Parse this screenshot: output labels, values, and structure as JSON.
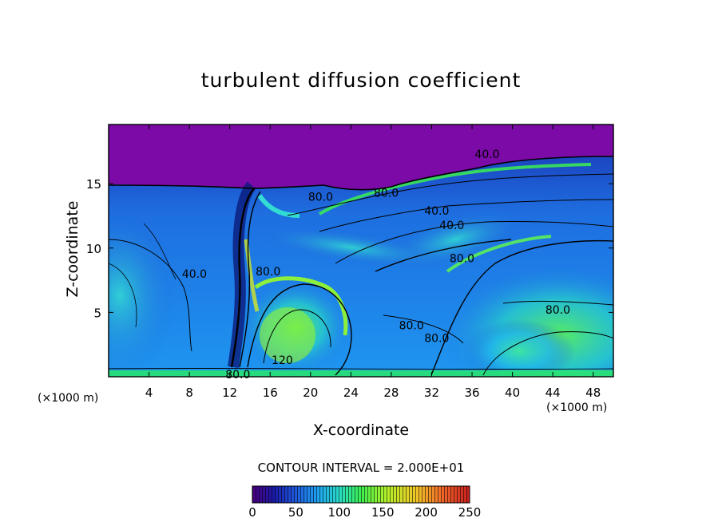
{
  "chart_data": {
    "type": "heatmap",
    "title": "turbulent diffusion coefficient",
    "xlabel": "X-coordinate",
    "ylabel": "Z-coordinate",
    "x_unit_label": "(×1000 m)",
    "x_ticks": [
      4,
      8,
      12,
      16,
      20,
      24,
      28,
      32,
      36,
      40,
      44,
      48
    ],
    "y_ticks": [
      5,
      10,
      15
    ],
    "xlim": [
      0,
      50
    ],
    "ylim": [
      0,
      19.6
    ],
    "contour_interval_text": "CONTOUR INTERVAL = 2.000E+01",
    "contour_labels": [
      {
        "text": "40.0",
        "x": 37.5,
        "y": 17.3
      },
      {
        "text": "80.0",
        "x": 21.0,
        "y": 14.0
      },
      {
        "text": "80.0",
        "x": 27.5,
        "y": 14.3
      },
      {
        "text": "40.0",
        "x": 32.5,
        "y": 12.9
      },
      {
        "text": "40.0",
        "x": 34.0,
        "y": 11.8
      },
      {
        "text": "80.0",
        "x": 35.0,
        "y": 9.2
      },
      {
        "text": "40.0",
        "x": 8.5,
        "y": 8.0
      },
      {
        "text": "80.0",
        "x": 15.8,
        "y": 8.2
      },
      {
        "text": "80.0",
        "x": 44.5,
        "y": 5.2
      },
      {
        "text": "80.0",
        "x": 30.0,
        "y": 4.0
      },
      {
        "text": "80.0",
        "x": 32.5,
        "y": 3.0
      },
      {
        "text": "120",
        "x": 17.2,
        "y": 1.3
      },
      {
        "text": "80.0",
        "x": 12.8,
        "y": 0.2
      }
    ],
    "colorbar": {
      "ticks": [
        0,
        50,
        100,
        150,
        200,
        250
      ],
      "range": [
        0,
        250
      ],
      "colors": [
        "#4b0080",
        "#1a1aa8",
        "#1e5adc",
        "#1ea0f0",
        "#28dcc8",
        "#3cf050",
        "#b4f028",
        "#f0c828",
        "#f06428",
        "#c81e1e"
      ]
    },
    "background_value_color": "#7b0aa6",
    "grid": false
  }
}
